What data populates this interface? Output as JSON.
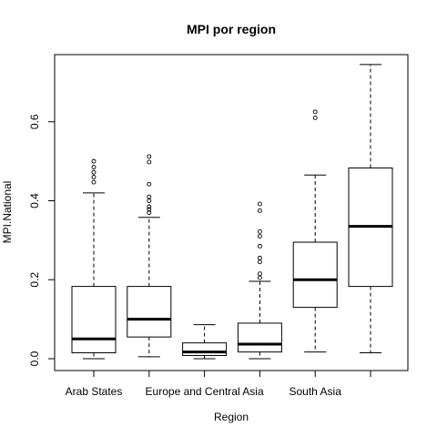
{
  "chart_data": {
    "type": "boxplot",
    "title": "MPI por region",
    "xlabel": "Region",
    "ylabel": "MPI.National",
    "ylim": [
      -0.03,
      0.77
    ],
    "yticks": [
      0.0,
      0.2,
      0.4,
      0.6
    ],
    "ytick_labels": [
      "0.0",
      "0.2",
      "0.4",
      "0.6"
    ],
    "categories": [
      "Arab States",
      "",
      "Europe and Central Asia",
      "",
      "South Asia",
      ""
    ],
    "boxes": [
      {
        "min": 0.0,
        "q1": 0.015,
        "median": 0.05,
        "q3": 0.183,
        "max": 0.42,
        "outliers": [
          0.447,
          0.46,
          0.472,
          0.485,
          0.5
        ]
      },
      {
        "min": 0.005,
        "q1": 0.055,
        "median": 0.1,
        "q3": 0.183,
        "max": 0.358,
        "outliers": [
          0.37,
          0.378,
          0.385,
          0.4,
          0.41,
          0.442,
          0.498,
          0.512
        ]
      },
      {
        "min": 0.0,
        "q1": 0.008,
        "median": 0.017,
        "q3": 0.04,
        "max": 0.086,
        "outliers": []
      },
      {
        "min": 0.0,
        "q1": 0.017,
        "median": 0.037,
        "q3": 0.09,
        "max": 0.196,
        "outliers": [
          0.205,
          0.215,
          0.245,
          0.255,
          0.285,
          0.31,
          0.322,
          0.375,
          0.392
        ]
      },
      {
        "min": 0.017,
        "q1": 0.13,
        "median": 0.2,
        "q3": 0.295,
        "max": 0.465,
        "outliers": [
          0.61,
          0.625
        ]
      },
      {
        "min": 0.015,
        "q1": 0.183,
        "median": 0.335,
        "q3": 0.483,
        "max": 0.745,
        "outliers": []
      }
    ],
    "grid": false,
    "legend": "none"
  }
}
